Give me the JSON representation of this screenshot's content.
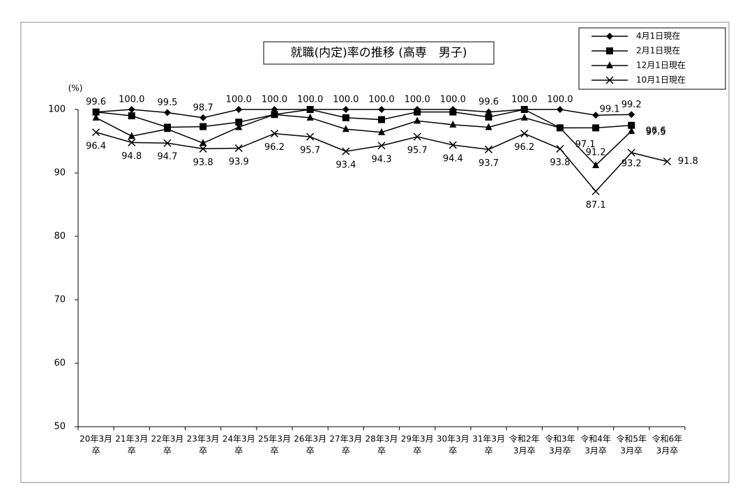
{
  "chart_data": {
    "type": "line",
    "title": "就職(内定)率の推移 (高専　男子)",
    "y_unit": "(%)",
    "categories": [
      [
        "20年3月",
        "卒"
      ],
      [
        "21年3月",
        "卒"
      ],
      [
        "22年3月",
        "卒"
      ],
      [
        "23年3月",
        "卒"
      ],
      [
        "24年3月",
        "卒"
      ],
      [
        "25年3月",
        "卒"
      ],
      [
        "26年3月",
        "卒"
      ],
      [
        "27年3月",
        "卒"
      ],
      [
        "28年3月",
        "卒"
      ],
      [
        "29年3月",
        "卒"
      ],
      [
        "30年3月",
        "卒"
      ],
      [
        "31年3月",
        "卒"
      ],
      [
        "令和2年",
        "3月卒"
      ],
      [
        "令和3年",
        "3月卒"
      ],
      [
        "令和4年",
        "3月卒"
      ],
      [
        "令和5年",
        "3月卒"
      ],
      [
        "令和6年",
        "3月卒"
      ]
    ],
    "ylim": [
      50,
      100
    ],
    "yticks": [
      50,
      60,
      70,
      80,
      90,
      100
    ],
    "legend": "top-right",
    "series": [
      {
        "name": "4月1日現在",
        "color": "#000000",
        "marker": "diamond",
        "values": [
          99.6,
          100,
          99.5,
          98.7,
          100,
          100,
          100,
          100,
          100,
          100,
          100,
          99.6,
          100,
          100,
          99.1,
          99.2,
          null
        ],
        "value_labels": [
          "99.6",
          "100.0",
          "99.5",
          "98.7",
          "100.0",
          "100.0",
          "100.0",
          "100.0",
          "100.0",
          "100.0",
          "100.0",
          "99.6",
          "100.0",
          "100.0",
          "99.1",
          "99.2",
          null
        ]
      },
      {
        "name": "2月1日現在",
        "color": "#000000",
        "marker": "square",
        "values": [
          99.6,
          99.0,
          97.2,
          97.3,
          98.0,
          99.2,
          100,
          98.7,
          98.4,
          99.6,
          99.6,
          98.8,
          100,
          97.1,
          97.1,
          97.5,
          null
        ],
        "value_labels": [
          null,
          null,
          null,
          null,
          null,
          null,
          null,
          null,
          null,
          null,
          null,
          null,
          null,
          null,
          "97.1",
          "97.5",
          null
        ]
      },
      {
        "name": "12月1日現在",
        "color": "#000000",
        "marker": "triangle",
        "values": [
          98.7,
          95.8,
          96.9,
          94.7,
          97.2,
          99.2,
          98.7,
          96.9,
          96.4,
          98.2,
          97.6,
          97.2,
          98.7,
          97.1,
          91.2,
          96.6,
          null
        ],
        "value_labels": [
          null,
          null,
          null,
          null,
          null,
          null,
          null,
          null,
          null,
          null,
          null,
          null,
          null,
          null,
          "91.2",
          "96.6",
          null
        ]
      },
      {
        "name": "10月1日現在",
        "color": "#000000",
        "marker": "x",
        "values": [
          96.4,
          94.8,
          94.7,
          93.8,
          93.9,
          96.2,
          95.7,
          93.4,
          94.3,
          95.7,
          94.4,
          93.7,
          96.2,
          93.8,
          87.1,
          93.2,
          91.8
        ],
        "value_labels": [
          "96.4",
          "94.8",
          "94.7",
          "93.8",
          "93.9",
          "96.2",
          "95.7",
          "93.4",
          "94.3",
          "95.7",
          "94.4",
          "93.7",
          "96.2",
          "93.8",
          "87.1",
          "93.2",
          "91.8"
        ]
      }
    ]
  }
}
